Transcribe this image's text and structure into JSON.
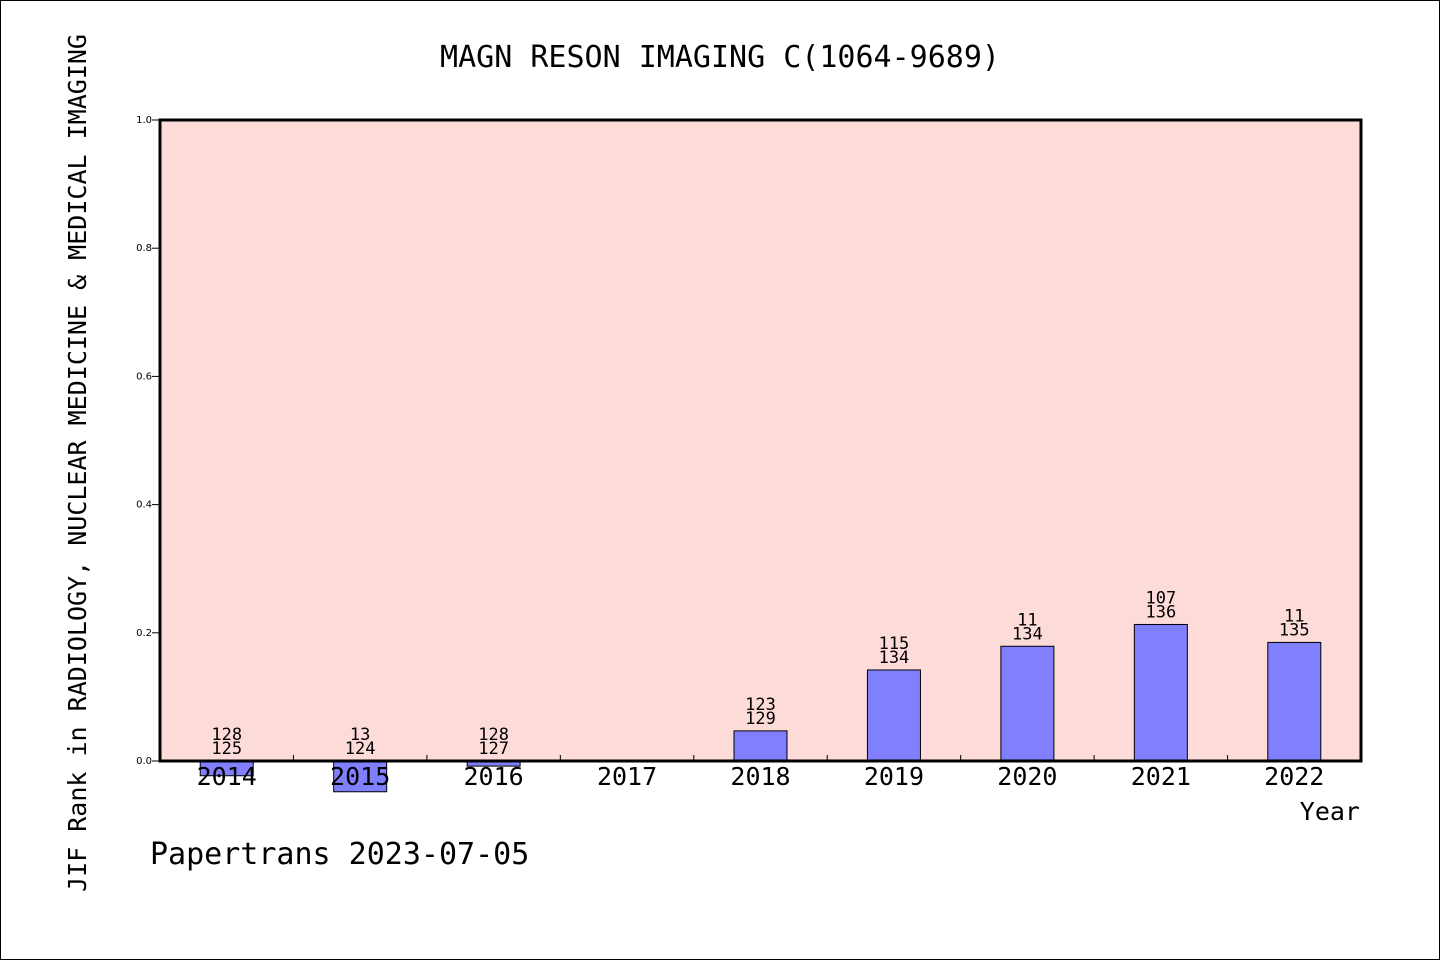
{
  "chart_data": {
    "type": "bar",
    "title": "MAGN RESON IMAGING C(1064-9689)",
    "ylabel": "JIF Rank in RADIOLOGY, NUCLEAR MEDICINE & MEDICAL IMAGING",
    "xlabel": "Year",
    "footer": "Papertrans 2023-07-05",
    "ylim": [
      0.0,
      1.0
    ],
    "yticks": [
      "0.0",
      "0.2",
      "0.4",
      "0.6",
      "0.8",
      "1.0"
    ],
    "grid": false,
    "colors": {
      "plot_bg": "#fddbd8",
      "bar": "#8080ff",
      "axis": "#000000"
    },
    "categories": [
      "2014",
      "2015",
      "2016",
      "2017",
      "2018",
      "2019",
      "2020",
      "2021",
      "2022"
    ],
    "values": [
      -0.023,
      -0.048,
      -0.008,
      null,
      0.047,
      0.142,
      0.179,
      0.213,
      0.185
    ],
    "labels": [
      [
        "128",
        "125"
      ],
      [
        "13",
        "124"
      ],
      [
        "128",
        "127"
      ],
      null,
      [
        "123",
        "129"
      ],
      [
        "115",
        "134"
      ],
      [
        "11",
        "134"
      ],
      [
        "107",
        "136"
      ],
      [
        "11",
        "135"
      ]
    ]
  }
}
